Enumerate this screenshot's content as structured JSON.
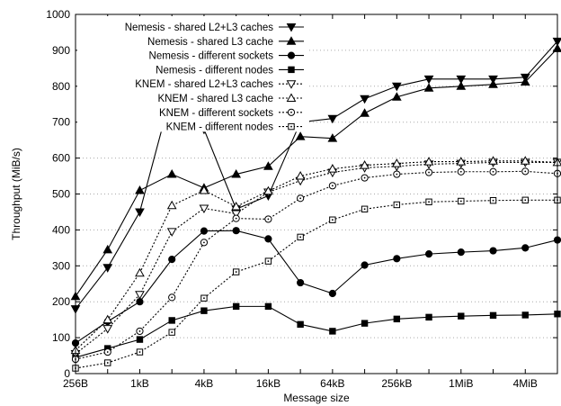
{
  "chart_data": {
    "type": "line",
    "title": "",
    "xlabel": "Message size",
    "ylabel": "Throughput (MiB/s)",
    "x_scale": "log2",
    "x": [
      "256B",
      "512B",
      "1kB",
      "2kB",
      "4kB",
      "8kB",
      "16kB",
      "32kB",
      "64kB",
      "128kB",
      "256kB",
      "512kB",
      "1MiB",
      "2MiB",
      "4MiB",
      "8MiB"
    ],
    "x_ticks": [
      "256B",
      "1kB",
      "4kB",
      "16kB",
      "64kB",
      "256kB",
      "1MiB",
      "4MiB"
    ],
    "ylim": [
      0,
      1000
    ],
    "y_ticks": [
      "0",
      "100",
      "200",
      "300",
      "400",
      "500",
      "600",
      "700",
      "800",
      "900",
      "1000"
    ],
    "grid": "horizontal dotted",
    "legend_position": "top-left",
    "series": [
      {
        "name": "Nemesis - shared L2+L3 caches",
        "style": "solid",
        "marker": "tri-down-filled",
        "values": [
          180,
          295,
          450,
          785,
          680,
          458,
          495,
          700,
          710,
          765,
          800,
          820,
          820,
          820,
          825,
          925
        ]
      },
      {
        "name": "Nemesis - shared L3 cache",
        "style": "solid",
        "marker": "tri-up-filled",
        "values": [
          215,
          345,
          510,
          555,
          517,
          555,
          577,
          660,
          655,
          725,
          770,
          795,
          800,
          805,
          812,
          905
        ]
      },
      {
        "name": "Nemesis - different sockets",
        "style": "solid",
        "marker": "circle-filled",
        "values": [
          85,
          145,
          200,
          318,
          397,
          398,
          375,
          253,
          223,
          302,
          320,
          333,
          338,
          342,
          350,
          372
        ]
      },
      {
        "name": "Nemesis - different nodes",
        "style": "solid",
        "marker": "square-filled",
        "values": [
          45,
          70,
          95,
          148,
          175,
          187,
          187,
          137,
          118,
          140,
          152,
          157,
          160,
          162,
          163,
          166
        ]
      },
      {
        "name": "KNEM - shared L2+L3 caches",
        "style": "dotted",
        "marker": "tri-down-open",
        "values": [
          55,
          125,
          220,
          395,
          460,
          445,
          505,
          537,
          560,
          573,
          577,
          583,
          585,
          588,
          588,
          588
        ]
      },
      {
        "name": "KNEM - shared L3 cache",
        "style": "dotted",
        "marker": "tri-up-open",
        "values": [
          65,
          150,
          280,
          468,
          510,
          465,
          508,
          550,
          570,
          580,
          585,
          590,
          590,
          592,
          592,
          588
        ]
      },
      {
        "name": "KNEM - different sockets",
        "style": "dotted",
        "marker": "circle-open",
        "values": [
          40,
          60,
          118,
          212,
          365,
          432,
          430,
          488,
          523,
          545,
          555,
          560,
          562,
          562,
          563,
          557
        ]
      },
      {
        "name": "KNEM - different nodes",
        "style": "dotted",
        "marker": "square-open",
        "values": [
          15,
          30,
          60,
          115,
          210,
          283,
          313,
          380,
          428,
          458,
          470,
          478,
          480,
          482,
          483,
          483
        ]
      }
    ]
  }
}
